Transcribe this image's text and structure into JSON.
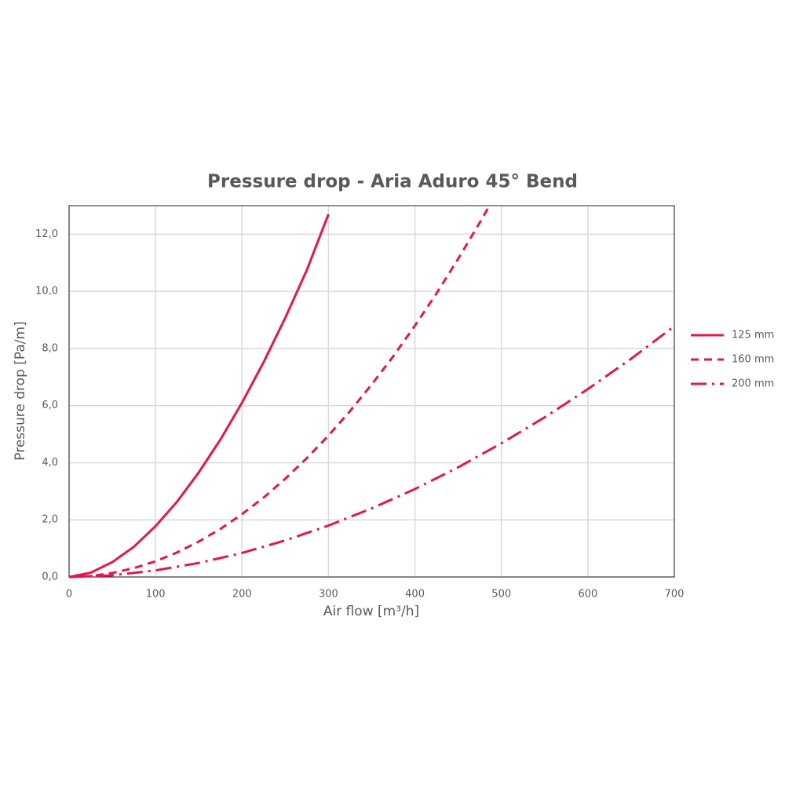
{
  "chart_data": {
    "type": "line",
    "title": "Pressure drop - Aria Aduro 45° Bend",
    "xlabel": "Air flow [m³/h]",
    "ylabel": "Pressure drop [Pa/m]",
    "xlim": [
      0,
      700
    ],
    "xticks": [
      0,
      100,
      200,
      300,
      400,
      500,
      600,
      700
    ],
    "ylim": [
      0,
      13
    ],
    "yticks": [
      {
        "value": 0,
        "label": "0,0"
      },
      {
        "value": 2,
        "label": "2,0"
      },
      {
        "value": 4,
        "label": "4,0"
      },
      {
        "value": 6,
        "label": "6,0"
      },
      {
        "value": 8,
        "label": "8,0"
      },
      {
        "value": 10,
        "label": "10,0"
      },
      {
        "value": 12,
        "label": "12,0"
      }
    ],
    "grid": true,
    "legend": "right",
    "series": [
      {
        "name": "125 mm",
        "color": "#e3174b",
        "dash": "solid",
        "x": [
          0,
          25,
          50,
          75,
          100,
          125,
          150,
          175,
          200,
          225,
          250,
          275,
          300
        ],
        "values": [
          0,
          0.15,
          0.52,
          1.06,
          1.78,
          2.64,
          3.66,
          4.81,
          6.1,
          7.52,
          9.07,
          10.75,
          12.7
        ]
      },
      {
        "name": "160 mm",
        "color": "#e3174b",
        "dash": "dash",
        "x": [
          0,
          25,
          50,
          75,
          100,
          125,
          150,
          175,
          200,
          225,
          250,
          275,
          300,
          325,
          350,
          375,
          400,
          425,
          450,
          475,
          486
        ],
        "values": [
          0,
          0.03,
          0.14,
          0.31,
          0.55,
          0.86,
          1.24,
          1.68,
          2.2,
          2.78,
          3.44,
          4.16,
          4.95,
          5.81,
          6.74,
          7.73,
          8.8,
          9.93,
          11.14,
          12.41,
          12.99
        ]
      },
      {
        "name": "200 mm",
        "color": "#e3174b",
        "dash": "dashdot",
        "x": [
          0,
          50,
          100,
          150,
          200,
          250,
          300,
          350,
          400,
          450,
          500,
          550,
          600,
          650,
          700
        ],
        "values": [
          0,
          0.06,
          0.23,
          0.49,
          0.84,
          1.28,
          1.8,
          2.4,
          3.08,
          3.84,
          4.68,
          5.59,
          6.58,
          7.64,
          8.78
        ]
      }
    ]
  }
}
